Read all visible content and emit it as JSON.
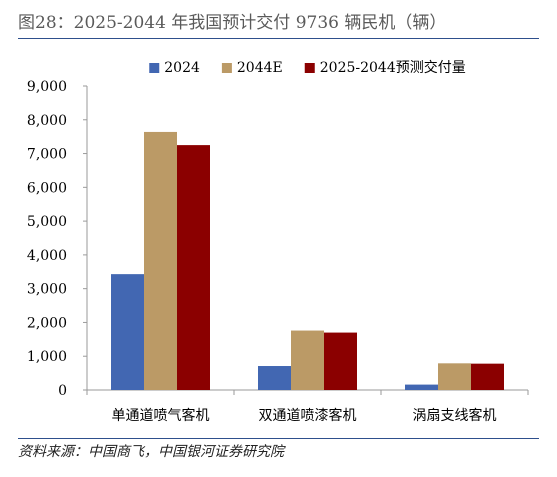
{
  "figure": {
    "title": "图28：2025-2044 年我国预计交付 9736 辆民机（辆）",
    "source": "资料来源：中国商飞，中国银河证券研究院"
  },
  "chart_data": {
    "type": "bar",
    "categories": [
      "单通道喷气客机",
      "双通道喷漆客机",
      "涡扇支线客机"
    ],
    "series": [
      {
        "name": "2024",
        "color": "#4267b2",
        "values": [
          3430,
          710,
          160
        ]
      },
      {
        "name": "2044E",
        "color": "#bb9a66",
        "values": [
          7640,
          1760,
          790
        ]
      },
      {
        "name": "2025-2044预测交付量",
        "color": "#8b0000",
        "values": [
          7250,
          1700,
          780
        ]
      }
    ],
    "ylim": [
      0,
      9000
    ],
    "yticks": [
      "0",
      "1,000",
      "2,000",
      "3,000",
      "4,000",
      "5,000",
      "6,000",
      "7,000",
      "8,000",
      "9,000"
    ],
    "grid": false,
    "legend": "top"
  }
}
